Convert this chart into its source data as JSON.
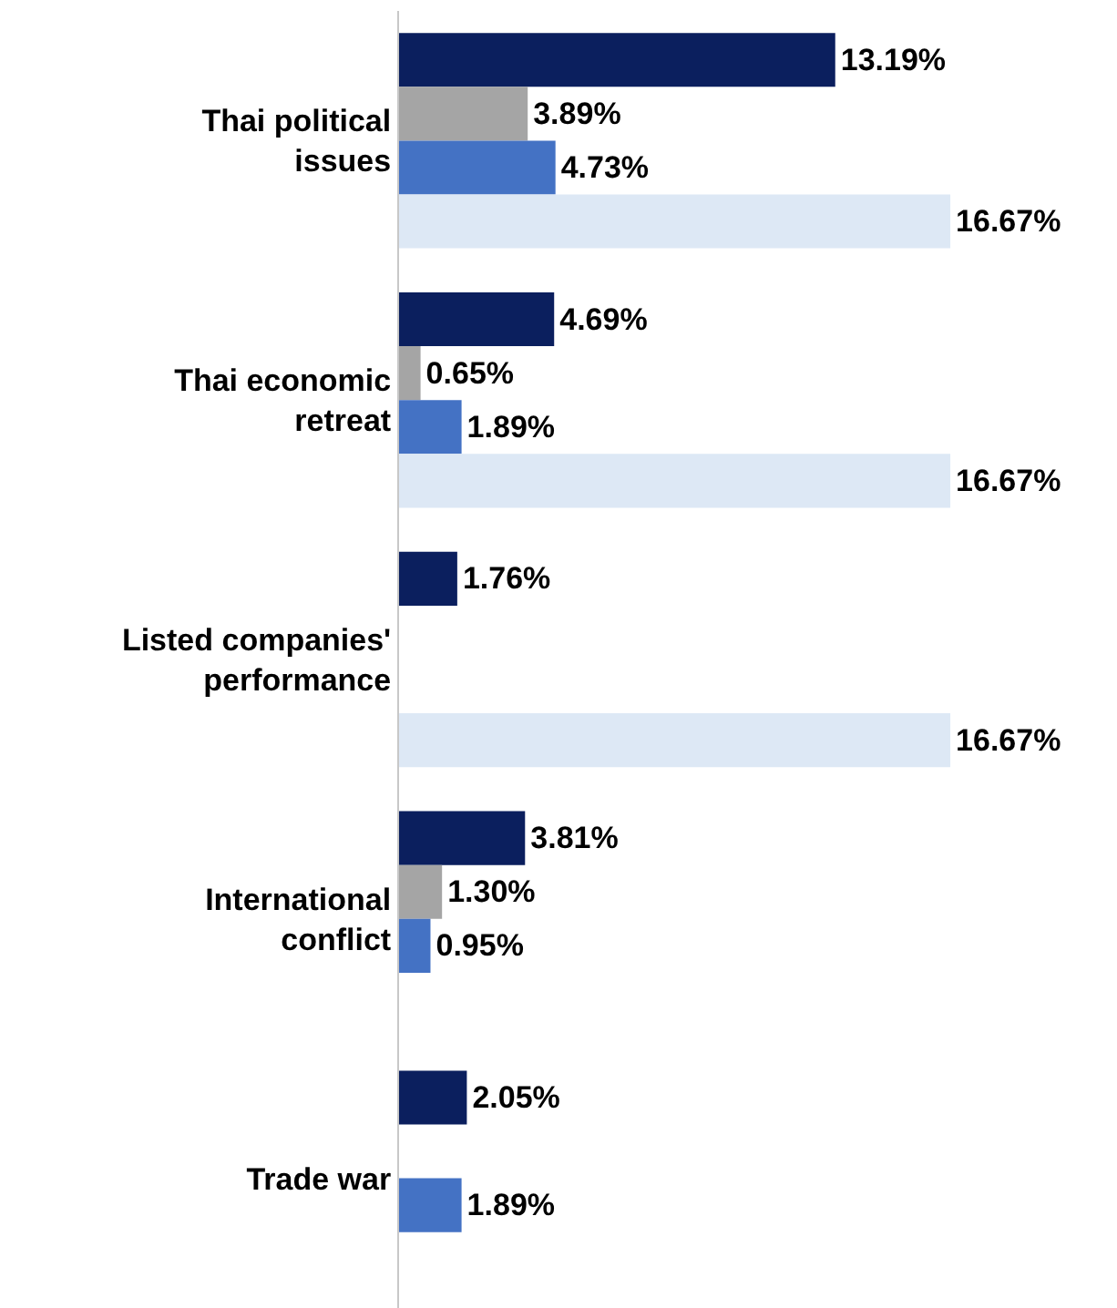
{
  "chart_data": {
    "type": "bar",
    "orientation": "horizontal",
    "categories": [
      "Thai political issues",
      "Thai economic retreat",
      "Listed companies' performance",
      "International conflict",
      "Trade war"
    ],
    "series": [
      {
        "color": "#0b1f5e",
        "values": [
          13.19,
          4.69,
          1.76,
          3.81,
          2.05
        ],
        "value_labels": [
          "13.19%",
          "4.69%",
          "1.76%",
          "3.81%",
          "2.05%"
        ]
      },
      {
        "color": "#a5a5a5",
        "values": [
          3.89,
          0.65,
          null,
          1.3,
          null
        ],
        "value_labels": [
          "3.89%",
          "0.65%",
          null,
          "1.30%",
          null
        ]
      },
      {
        "color": "#4472c4",
        "values": [
          4.73,
          1.89,
          null,
          0.95,
          1.89
        ],
        "value_labels": [
          "4.73%",
          "1.89%",
          null,
          "0.95%",
          "1.89%"
        ]
      },
      {
        "color": "#dde8f5",
        "values": [
          16.67,
          16.67,
          16.67,
          null,
          null
        ],
        "value_labels": [
          "16.67%",
          "16.67%",
          "16.67%",
          null,
          null
        ]
      }
    ],
    "xlim": [
      0,
      21.6
    ],
    "tick_labels": "y"
  }
}
